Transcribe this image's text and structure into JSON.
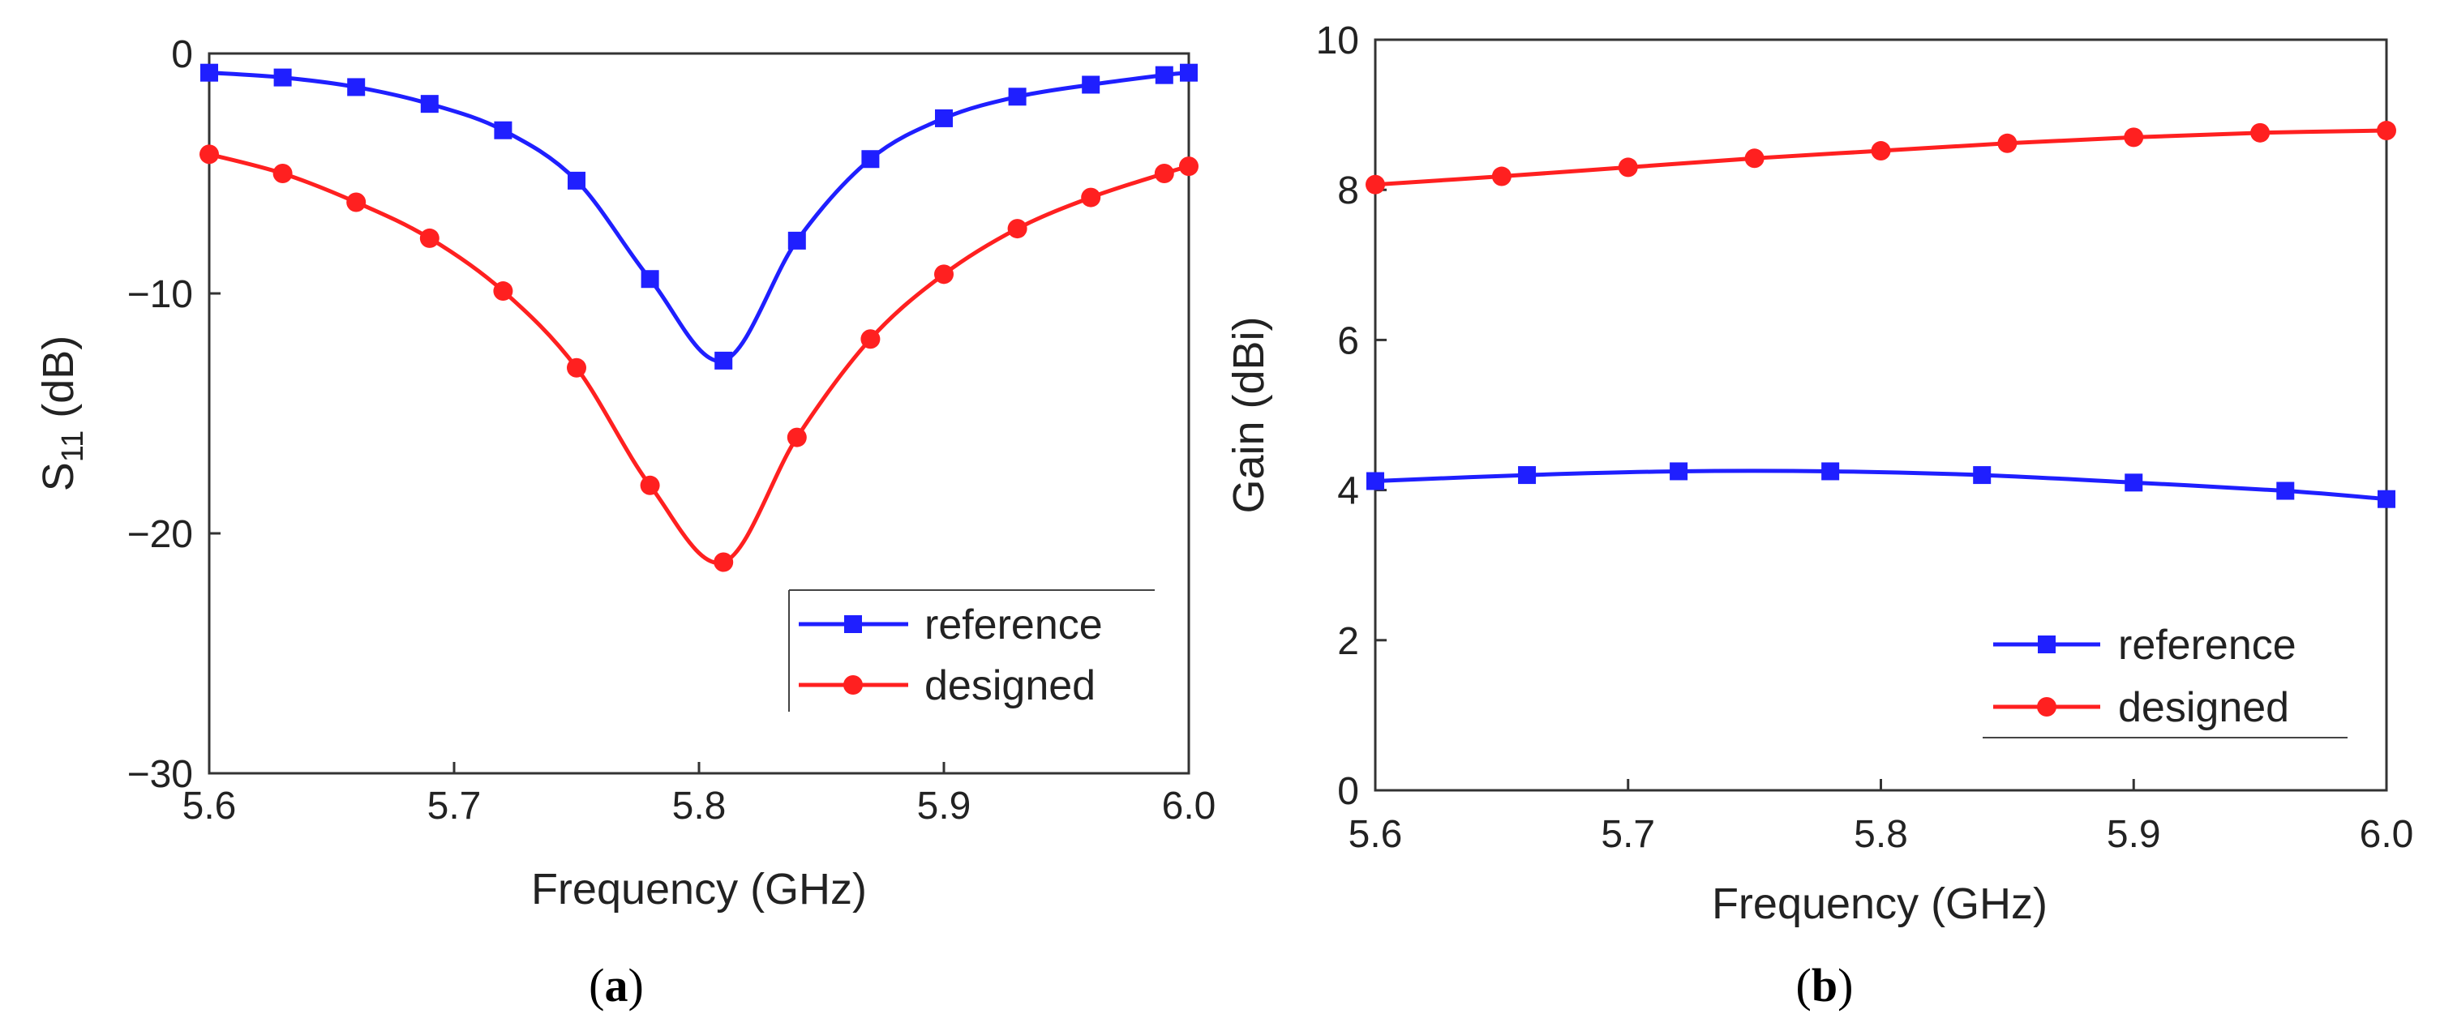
{
  "figure": {
    "captions": [
      {
        "open": "(",
        "letter": "a",
        "close": ")"
      },
      {
        "open": "(",
        "letter": "b",
        "close": ")"
      }
    ]
  },
  "chart_data": [
    {
      "type": "line",
      "panel": "a",
      "title": "",
      "xlabel": "Frequency (GHz)",
      "ylabel": {
        "main": "S",
        "sub": "11",
        "suffix": " (dB)"
      },
      "xlim": [
        5.6,
        6.0
      ],
      "ylim": [
        -30,
        0
      ],
      "xticks": [
        5.6,
        5.7,
        5.8,
        5.9,
        6.0
      ],
      "xtick_labels": [
        "5.6",
        "5.7",
        "5.8",
        "5.9",
        "6.0"
      ],
      "yticks": [
        0,
        -10,
        -20,
        -30
      ],
      "ytick_labels": [
        "0",
        "−10",
        "−20",
        "−30"
      ],
      "grid": false,
      "legend_position": "bottom-right",
      "series": [
        {
          "name": "reference",
          "color": "#1f1fff",
          "marker": "square",
          "x": [
            5.6,
            5.63,
            5.66,
            5.69,
            5.72,
            5.75,
            5.78,
            5.81,
            5.84,
            5.87,
            5.9,
            5.93,
            5.96,
            5.99,
            6.0
          ],
          "y": [
            -0.8,
            -1.0,
            -1.4,
            -2.1,
            -3.2,
            -5.3,
            -9.4,
            -12.8,
            -7.8,
            -4.4,
            -2.7,
            -1.8,
            -1.3,
            -0.9,
            -0.8
          ]
        },
        {
          "name": "designed",
          "color": "#ff2020",
          "marker": "circle",
          "x": [
            5.6,
            5.63,
            5.66,
            5.69,
            5.72,
            5.75,
            5.78,
            5.81,
            5.84,
            5.87,
            5.9,
            5.93,
            5.96,
            5.99,
            6.0
          ],
          "y": [
            -4.2,
            -5.0,
            -6.2,
            -7.7,
            -9.9,
            -13.1,
            -18.0,
            -21.2,
            -16.0,
            -11.9,
            -9.2,
            -7.3,
            -6.0,
            -5.0,
            -4.7
          ]
        }
      ]
    },
    {
      "type": "line",
      "panel": "b",
      "title": "",
      "xlabel": "Frequency (GHz)",
      "ylabel": {
        "main": "Gain (dBi)",
        "sub": "",
        "suffix": ""
      },
      "xlim": [
        5.6,
        6.0
      ],
      "ylim": [
        0,
        10
      ],
      "xticks": [
        5.6,
        5.7,
        5.8,
        5.9,
        6.0
      ],
      "xtick_labels": [
        "5.6",
        "5.7",
        "5.8",
        "5.9",
        "6.0"
      ],
      "yticks": [
        0,
        2,
        4,
        6,
        8,
        10
      ],
      "ytick_labels": [
        "0",
        "2",
        "4",
        "6",
        "8",
        "10"
      ],
      "grid": false,
      "legend_position": "bottom-right",
      "series": [
        {
          "name": "reference",
          "color": "#1f1fff",
          "marker": "square",
          "x": [
            5.6,
            5.66,
            5.72,
            5.78,
            5.84,
            5.9,
            5.96,
            6.0
          ],
          "y": [
            4.12,
            4.2,
            4.25,
            4.25,
            4.2,
            4.1,
            3.99,
            3.88
          ]
        },
        {
          "name": "designed",
          "color": "#ff2020",
          "marker": "circle",
          "x": [
            5.6,
            5.65,
            5.7,
            5.75,
            5.8,
            5.85,
            5.9,
            5.95,
            6.0
          ],
          "y": [
            8.07,
            8.18,
            8.3,
            8.42,
            8.52,
            8.62,
            8.7,
            8.76,
            8.79
          ]
        }
      ]
    }
  ]
}
